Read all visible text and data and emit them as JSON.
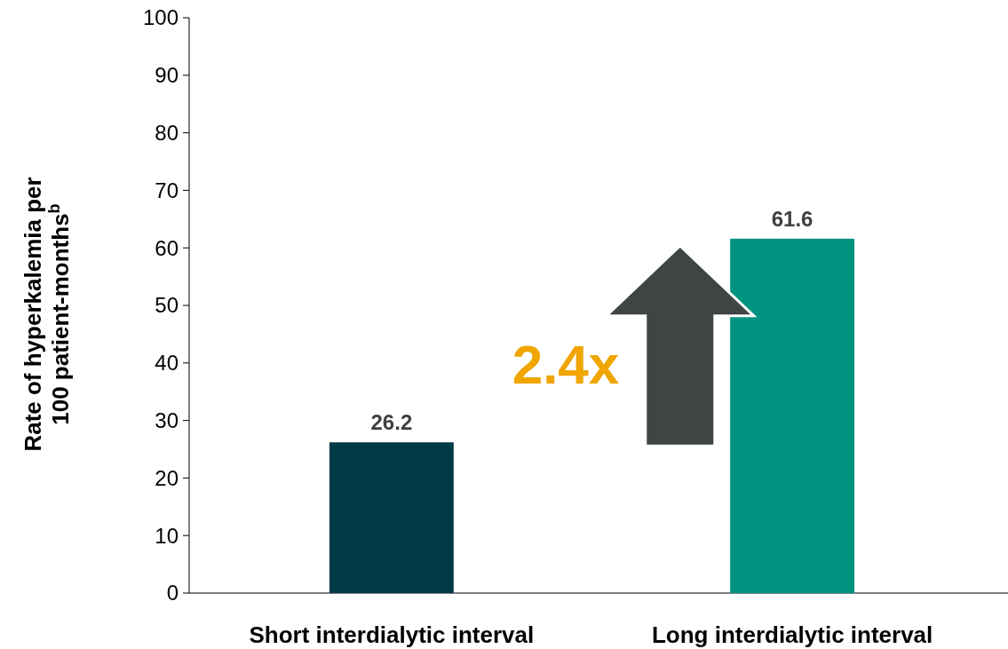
{
  "chart_data": {
    "type": "bar",
    "ylabel": "Rate of hyperkalemia per 100 patient-months$^{b}$",
    "categories": [
      "Short interdialytic interval",
      "Long interdialytic interval"
    ],
    "values": [
      26.2,
      61.6
    ],
    "colors": [
      "#003a46",
      "#009480"
    ],
    "ylim": [
      0,
      100
    ],
    "yticks": [
      0,
      10,
      20,
      30,
      40,
      50,
      60,
      70,
      80,
      90,
      100
    ],
    "grid": false,
    "data_labels": true,
    "annotations": [
      "2.4x"
    ]
  }
}
